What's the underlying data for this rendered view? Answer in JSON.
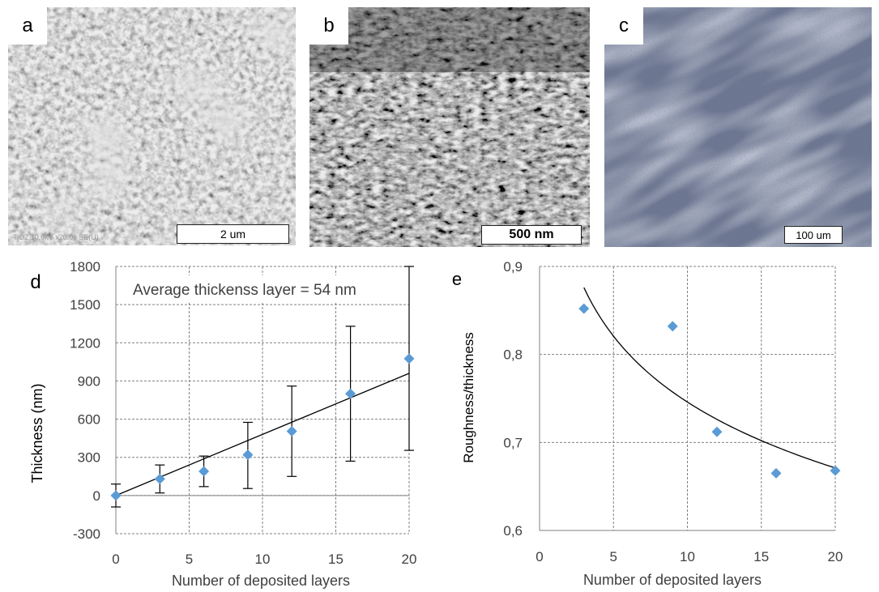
{
  "panels": {
    "a": {
      "letter": "a",
      "scale": "2 um",
      "footer": "TiO2 10.0kV x20.0k SE(U)"
    },
    "b": {
      "letter": "b",
      "scale": "500 nm"
    },
    "c": {
      "letter": "c",
      "scale": "100 um"
    },
    "d": {
      "letter": "d"
    },
    "e": {
      "letter": "e"
    }
  },
  "colors": {
    "marker": "#5b9bd5",
    "line": "#000000",
    "grid": "#808080"
  },
  "chart_data": [
    {
      "type": "scatter",
      "panel": "d",
      "annotation": "Average thickenss layer = 54 nm",
      "xlabel": "Number of deposited layers",
      "ylabel": "Thickness (nm)",
      "xlim": [
        0,
        20
      ],
      "ylim": [
        -300,
        1800
      ],
      "xticks": [
        "0",
        "5",
        "10",
        "15",
        "20"
      ],
      "yticks": [
        "-300",
        "0",
        "300",
        "600",
        "900",
        "1200",
        "1500",
        "1800"
      ],
      "x": [
        0,
        3,
        6,
        9,
        12,
        16,
        20
      ],
      "y": [
        0,
        130,
        190,
        320,
        505,
        800,
        1075
      ],
      "error_low": [
        -90,
        20,
        70,
        55,
        150,
        270,
        355
      ],
      "error_high": [
        90,
        240,
        310,
        575,
        860,
        1330,
        1800
      ],
      "trendline": {
        "type": "linear",
        "x": [
          0,
          20
        ],
        "y": [
          0,
          960
        ]
      },
      "grid": true
    },
    {
      "type": "scatter",
      "panel": "e",
      "xlabel": "Number of deposited layers",
      "ylabel": "Roughness/thickness",
      "xlim": [
        0,
        20
      ],
      "ylim": [
        0.6,
        0.9
      ],
      "xticks": [
        "0",
        "5",
        "10",
        "15",
        "20"
      ],
      "yticks": [
        "0,6",
        "0,7",
        "0,8",
        "0,9"
      ],
      "x": [
        3,
        9,
        12,
        16,
        20
      ],
      "y": [
        0.852,
        0.832,
        0.712,
        0.665,
        0.668
      ],
      "trendline": {
        "type": "logarithmic",
        "x_range": [
          3,
          20
        ],
        "y_start": 0.876,
        "y_end": 0.671
      },
      "grid": true
    }
  ]
}
